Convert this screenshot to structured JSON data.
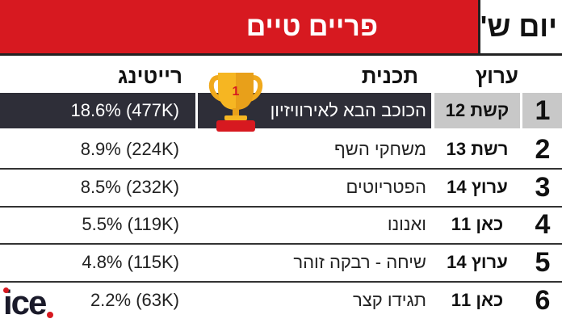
{
  "header": {
    "title": "פריים טיים",
    "day": "יום ש'",
    "accent_color": "#d71920"
  },
  "columns": {
    "channel": "ערוץ",
    "show": "תכנית",
    "rating": "רייטינג"
  },
  "rows": [
    {
      "rank": "1",
      "channel": "קשת 12",
      "show": "הכוכב הבא לאירוויזיון",
      "rating": "18.6% (477K)"
    },
    {
      "rank": "2",
      "channel": "רשת 13",
      "show": "משחקי השף",
      "rating": "8.9% (224K)"
    },
    {
      "rank": "3",
      "channel": "ערוץ 14",
      "show": "הפטריוטים",
      "rating": "8.5% (232K)"
    },
    {
      "rank": "4",
      "channel": "כאן 11",
      "show": "ואנונו",
      "rating": "5.5% (119K)"
    },
    {
      "rank": "5",
      "channel": "ערוץ 14",
      "show": "שיחה - רבקה זוהר",
      "rating": "4.8% (115K)"
    },
    {
      "rank": "6",
      "channel": "כאן 11",
      "show": "תגידו קצר",
      "rating": "2.2% (63K)"
    }
  ],
  "trophy": {
    "icon": "trophy-icon",
    "label": "1"
  },
  "logo": {
    "text": "ice"
  }
}
